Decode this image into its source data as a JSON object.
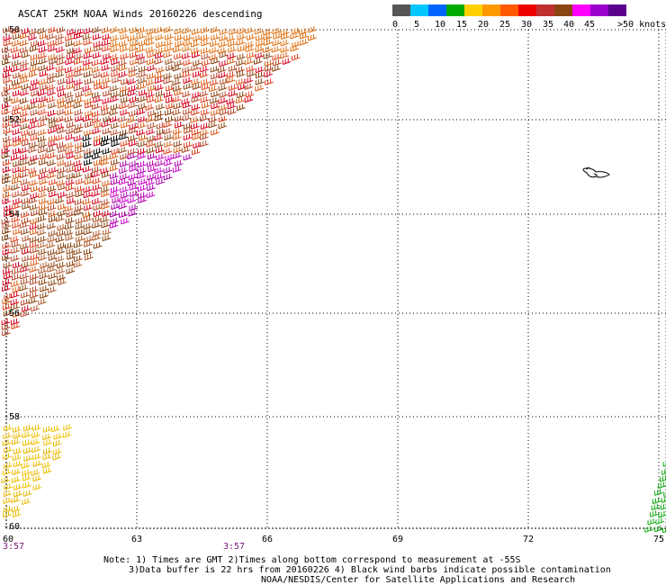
{
  "title": "ASCAT 25KM NOAA Winds 20160226 descending",
  "colorbar": {
    "labels": [
      "0",
      "5",
      "10",
      "15",
      "20",
      "25",
      "30",
      "35",
      "40",
      "45",
      ">50 knots"
    ],
    "colors": [
      "#555555",
      "#00c8ff",
      "#0066ff",
      "#00aa00",
      "#ffd000",
      "#ff9900",
      "#ff5a00",
      "#ee0000",
      "#c03030",
      "#8b4513",
      "#ff00ff",
      "#9900cc",
      "#5a008c"
    ]
  },
  "axes": {
    "lat_ticks": [
      "-50",
      "-52",
      "-54",
      "-56",
      "-58",
      "-60"
    ],
    "lon_ticks": [
      "60",
      "63",
      "66",
      "69",
      "72",
      "75"
    ]
  },
  "times": {
    "left": "3:57",
    "middle": "3:57"
  },
  "notes": {
    "line1": "Note: 1) Times are GMT 2)Times along bottom correspond to measurement at -55S",
    "line2": "3)Data buffer is 22 hrs from 20160226 4) Black wind barbs indicate possible contamination",
    "line3": "NOAA/NESDIS/Center for Satellite Applications and Research"
  },
  "map_features": {
    "island": "coastline-outline",
    "barb_swath_colors": {
      "main": [
        "#d6001c",
        "#e0401c",
        "#b34a2a",
        "#8b4513",
        "#d86018"
      ],
      "core": [
        "#cc00cc",
        "#aa00aa"
      ],
      "contaminated": "#000000",
      "southwest": [
        "#f0c000",
        "#e8b800"
      ],
      "southeast": "#11aa11"
    }
  }
}
